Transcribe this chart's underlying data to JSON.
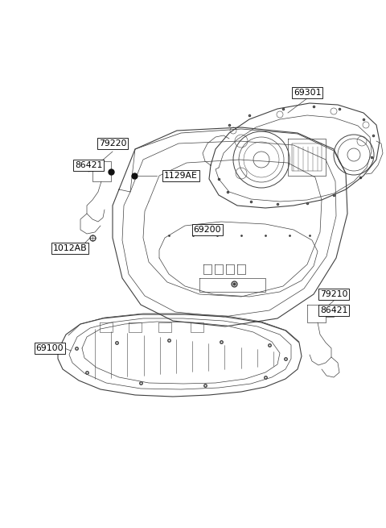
{
  "background_color": "#ffffff",
  "fig_width": 4.8,
  "fig_height": 6.55,
  "dpi": 100,
  "line_color": "#404040",
  "label_fontsize": 7.5,
  "detail_lw": 0.5,
  "outer_lw": 0.8
}
